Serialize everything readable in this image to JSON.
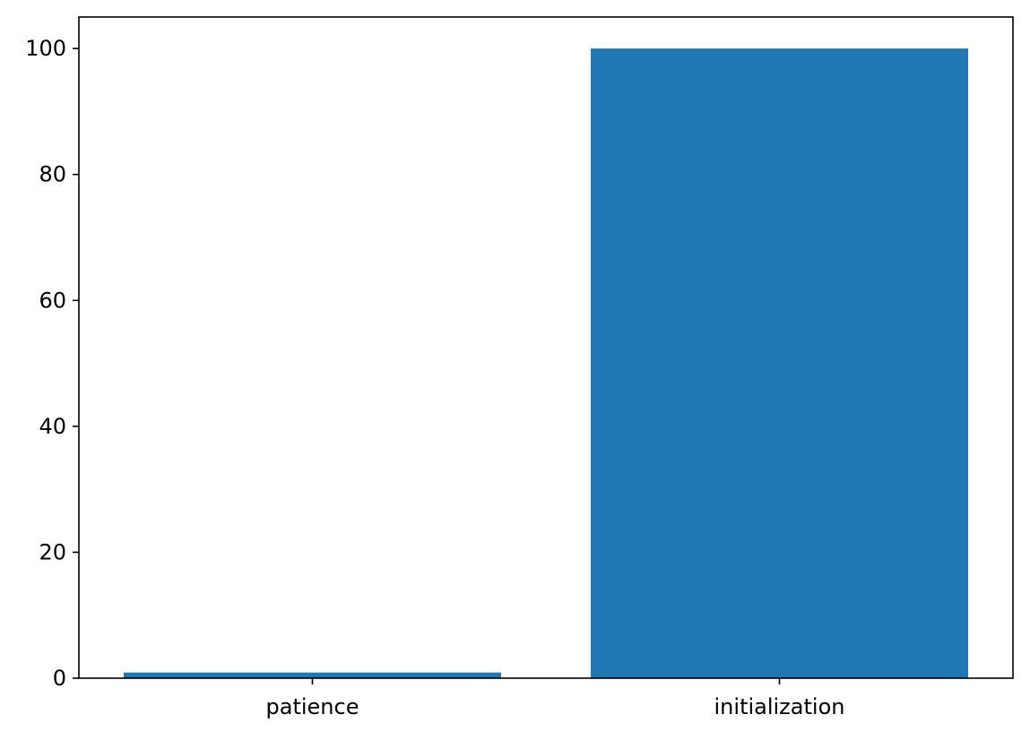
{
  "chart_data": {
    "type": "bar",
    "title": "",
    "xlabel": "",
    "ylabel": "",
    "categories": [
      "patience",
      "initialization"
    ],
    "values": [
      0.9,
      100
    ],
    "ylim": [
      0,
      105
    ],
    "yticks": [
      0,
      20,
      40,
      60,
      80,
      100
    ],
    "ytick_labels": [
      "0",
      "20",
      "40",
      "60",
      "80",
      "100"
    ],
    "grid": false,
    "legend": "none",
    "bar_color": "#1f77b4"
  }
}
